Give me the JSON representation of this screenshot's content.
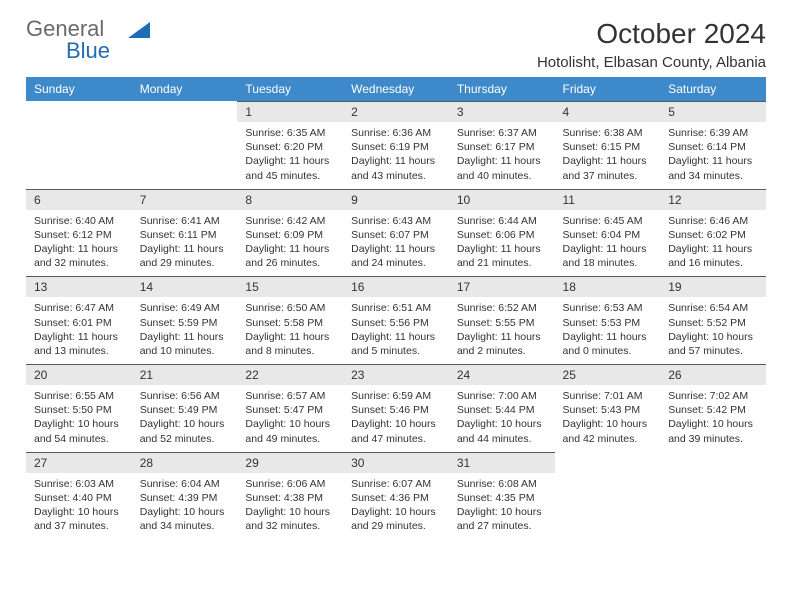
{
  "brand": {
    "part1": "General",
    "part2": "Blue"
  },
  "title": "October 2024",
  "location": "Hotolisht, Elbasan County, Albania",
  "colors": {
    "header_bg": "#3e89c9",
    "header_fg": "#ffffff",
    "daynum_bg": "#e8e8e8",
    "daynum_border": "#5a5a5a",
    "text": "#333333",
    "brand_blue": "#1f6db5"
  },
  "daysOfWeek": [
    "Sunday",
    "Monday",
    "Tuesday",
    "Wednesday",
    "Thursday",
    "Friday",
    "Saturday"
  ],
  "weeks": [
    [
      null,
      null,
      {
        "n": "1",
        "sr": "6:35 AM",
        "ss": "6:20 PM",
        "dl": "11 hours and 45 minutes."
      },
      {
        "n": "2",
        "sr": "6:36 AM",
        "ss": "6:19 PM",
        "dl": "11 hours and 43 minutes."
      },
      {
        "n": "3",
        "sr": "6:37 AM",
        "ss": "6:17 PM",
        "dl": "11 hours and 40 minutes."
      },
      {
        "n": "4",
        "sr": "6:38 AM",
        "ss": "6:15 PM",
        "dl": "11 hours and 37 minutes."
      },
      {
        "n": "5",
        "sr": "6:39 AM",
        "ss": "6:14 PM",
        "dl": "11 hours and 34 minutes."
      }
    ],
    [
      {
        "n": "6",
        "sr": "6:40 AM",
        "ss": "6:12 PM",
        "dl": "11 hours and 32 minutes."
      },
      {
        "n": "7",
        "sr": "6:41 AM",
        "ss": "6:11 PM",
        "dl": "11 hours and 29 minutes."
      },
      {
        "n": "8",
        "sr": "6:42 AM",
        "ss": "6:09 PM",
        "dl": "11 hours and 26 minutes."
      },
      {
        "n": "9",
        "sr": "6:43 AM",
        "ss": "6:07 PM",
        "dl": "11 hours and 24 minutes."
      },
      {
        "n": "10",
        "sr": "6:44 AM",
        "ss": "6:06 PM",
        "dl": "11 hours and 21 minutes."
      },
      {
        "n": "11",
        "sr": "6:45 AM",
        "ss": "6:04 PM",
        "dl": "11 hours and 18 minutes."
      },
      {
        "n": "12",
        "sr": "6:46 AM",
        "ss": "6:02 PM",
        "dl": "11 hours and 16 minutes."
      }
    ],
    [
      {
        "n": "13",
        "sr": "6:47 AM",
        "ss": "6:01 PM",
        "dl": "11 hours and 13 minutes."
      },
      {
        "n": "14",
        "sr": "6:49 AM",
        "ss": "5:59 PM",
        "dl": "11 hours and 10 minutes."
      },
      {
        "n": "15",
        "sr": "6:50 AM",
        "ss": "5:58 PM",
        "dl": "11 hours and 8 minutes."
      },
      {
        "n": "16",
        "sr": "6:51 AM",
        "ss": "5:56 PM",
        "dl": "11 hours and 5 minutes."
      },
      {
        "n": "17",
        "sr": "6:52 AM",
        "ss": "5:55 PM",
        "dl": "11 hours and 2 minutes."
      },
      {
        "n": "18",
        "sr": "6:53 AM",
        "ss": "5:53 PM",
        "dl": "11 hours and 0 minutes."
      },
      {
        "n": "19",
        "sr": "6:54 AM",
        "ss": "5:52 PM",
        "dl": "10 hours and 57 minutes."
      }
    ],
    [
      {
        "n": "20",
        "sr": "6:55 AM",
        "ss": "5:50 PM",
        "dl": "10 hours and 54 minutes."
      },
      {
        "n": "21",
        "sr": "6:56 AM",
        "ss": "5:49 PM",
        "dl": "10 hours and 52 minutes."
      },
      {
        "n": "22",
        "sr": "6:57 AM",
        "ss": "5:47 PM",
        "dl": "10 hours and 49 minutes."
      },
      {
        "n": "23",
        "sr": "6:59 AM",
        "ss": "5:46 PM",
        "dl": "10 hours and 47 minutes."
      },
      {
        "n": "24",
        "sr": "7:00 AM",
        "ss": "5:44 PM",
        "dl": "10 hours and 44 minutes."
      },
      {
        "n": "25",
        "sr": "7:01 AM",
        "ss": "5:43 PM",
        "dl": "10 hours and 42 minutes."
      },
      {
        "n": "26",
        "sr": "7:02 AM",
        "ss": "5:42 PM",
        "dl": "10 hours and 39 minutes."
      }
    ],
    [
      {
        "n": "27",
        "sr": "6:03 AM",
        "ss": "4:40 PM",
        "dl": "10 hours and 37 minutes."
      },
      {
        "n": "28",
        "sr": "6:04 AM",
        "ss": "4:39 PM",
        "dl": "10 hours and 34 minutes."
      },
      {
        "n": "29",
        "sr": "6:06 AM",
        "ss": "4:38 PM",
        "dl": "10 hours and 32 minutes."
      },
      {
        "n": "30",
        "sr": "6:07 AM",
        "ss": "4:36 PM",
        "dl": "10 hours and 29 minutes."
      },
      {
        "n": "31",
        "sr": "6:08 AM",
        "ss": "4:35 PM",
        "dl": "10 hours and 27 minutes."
      },
      null,
      null
    ]
  ],
  "labels": {
    "sunrise": "Sunrise:",
    "sunset": "Sunset:",
    "daylight": "Daylight:"
  }
}
